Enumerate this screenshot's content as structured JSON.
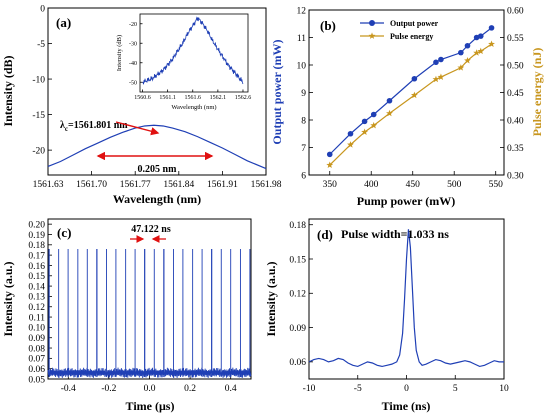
{
  "chart_data": [
    {
      "panel": "(a)",
      "type": "line",
      "xlabel": "Wavelength (nm)",
      "ylabel": "Intensity (dB)",
      "xlim": [
        1561.63,
        1561.98
      ],
      "ylim": [
        -23.5,
        0
      ],
      "xticks": [
        "1561.63",
        "1561.70",
        "1561.77",
        "1561.84",
        "1561.91",
        "1561.98"
      ],
      "yticks": [
        "0",
        "-5",
        "-10",
        "-15",
        "-20"
      ],
      "color": "#1f3fb5",
      "series": [
        {
          "x": [
            1561.63,
            1561.65,
            1561.67,
            1561.69,
            1561.71,
            1561.73,
            1561.75,
            1561.77,
            1561.785,
            1561.8,
            1561.815,
            1561.83,
            1561.85,
            1561.87,
            1561.89,
            1561.91,
            1561.93,
            1561.95,
            1561.98
          ],
          "y": [
            -22.3,
            -21.6,
            -20.7,
            -19.8,
            -19.0,
            -18.2,
            -17.5,
            -16.9,
            -16.6,
            -16.5,
            -16.6,
            -16.9,
            -17.4,
            -18.1,
            -18.9,
            -19.7,
            -20.6,
            -21.5,
            -22.6
          ]
        }
      ],
      "annotations": {
        "peak_label": "λ",
        "peak_sub": "c",
        "peak_value": "=1561.801 nm",
        "width_label": "0.205 nm"
      },
      "inset": {
        "type": "line",
        "xlabel": "Wavelength (nm)",
        "ylabel": "Intensity (dB)",
        "xlim": [
          1560.55,
          1562.7
        ],
        "ylim": [
          -55,
          -15
        ],
        "xticks": [
          "1560.6",
          "1561.1",
          "1561.6",
          "1562.1",
          "1562.6"
        ],
        "yticks": [
          "-20",
          "-30",
          "-40",
          "-50"
        ],
        "series": [
          {
            "x": [
              1560.6,
              1560.7,
              1560.8,
              1560.9,
              1561.0,
              1561.1,
              1561.2,
              1561.3,
              1561.4,
              1561.5,
              1561.6,
              1561.7,
              1561.8,
              1561.9,
              1562.0,
              1562.1,
              1562.2,
              1562.3,
              1562.4,
              1562.5,
              1562.6
            ],
            "y": [
              -50,
              -49,
              -48,
              -46,
              -44,
              -41,
              -38,
              -34,
              -30,
              -25,
              -21,
              -17,
              -20,
              -24,
              -29,
              -33,
              -37,
              -41,
              -44,
              -47,
              -50
            ]
          }
        ]
      }
    },
    {
      "panel": "(b)",
      "type": "line",
      "xlabel": "Pump power (mW)",
      "ylabel": "Output power (mW)",
      "ylabel_right": "Pulse energy (nJ)",
      "xlim": [
        325,
        560
      ],
      "ylim": [
        6,
        12
      ],
      "ylim_right": [
        0.3,
        0.6
      ],
      "xticks": [
        "350",
        "400",
        "450",
        "500",
        "550"
      ],
      "yticks": [
        "6",
        "7",
        "8",
        "9",
        "10",
        "11",
        "12"
      ],
      "yticks_right": [
        "0.30",
        "0.35",
        "0.40",
        "0.45",
        "0.50",
        "0.55",
        "0.60"
      ],
      "legend_position": "top-left",
      "series": [
        {
          "name": "Output power",
          "axis": "left",
          "marker": "circle",
          "color": "#1f3fb5",
          "x": [
            350,
            375,
            392,
            403,
            422,
            452,
            478,
            484,
            508,
            516,
            527,
            532,
            545
          ],
          "y": [
            6.75,
            7.5,
            7.95,
            8.2,
            8.7,
            9.5,
            10.1,
            10.2,
            10.45,
            10.7,
            11.0,
            11.05,
            11.35
          ]
        },
        {
          "name": "Pulse energy",
          "axis": "right",
          "marker": "star",
          "color": "#c8961e",
          "x": [
            350,
            375,
            392,
            403,
            422,
            452,
            478,
            484,
            508,
            516,
            527,
            532,
            545
          ],
          "y": [
            0.318,
            0.355,
            0.378,
            0.39,
            0.412,
            0.445,
            0.474,
            0.478,
            0.495,
            0.508,
            0.522,
            0.525,
            0.538
          ]
        }
      ]
    },
    {
      "panel": "(c)",
      "type": "line",
      "xlabel": "Time (μs)",
      "ylabel": "Intensity (a.u.)",
      "xlim": [
        -0.5,
        0.5
      ],
      "ylim": [
        0.05,
        0.205
      ],
      "xticks": [
        "-0.4",
        "-0.2",
        "0.0",
        "0.2",
        "0.4"
      ],
      "yticks": [
        "0.05",
        "0.06",
        "0.07",
        "0.08",
        "0.09",
        "0.10",
        "0.11",
        "0.12",
        "0.13",
        "0.14",
        "0.15",
        "0.16",
        "0.17",
        "0.18",
        "0.19",
        "0.20"
      ],
      "color": "#1f3fb5",
      "pulse_period_us": 0.047122,
      "pulse_peak": 0.176,
      "baseline": 0.056,
      "annotation": "47.122 ns"
    },
    {
      "panel": "(d)",
      "type": "line",
      "xlabel": "Time (ns)",
      "ylabel": "Intensity (a.u.)",
      "xlim": [
        -10,
        10
      ],
      "ylim": [
        0.045,
        0.185
      ],
      "xticks": [
        "-10",
        "-5",
        "0",
        "5",
        "10"
      ],
      "yticks": [
        "0.06",
        "0.09",
        "0.12",
        "0.15",
        "0.18"
      ],
      "color": "#1f3fb5",
      "annotation": "Pulse width=1.033 ns",
      "series": [
        {
          "x": [
            -10,
            -9.5,
            -9,
            -8.5,
            -8,
            -7.5,
            -7,
            -6.5,
            -6,
            -5.5,
            -5,
            -4.5,
            -4,
            -3.5,
            -3,
            -2.5,
            -2,
            -1.5,
            -1,
            -0.7,
            -0.4,
            -0.2,
            0,
            0.2,
            0.4,
            0.6,
            0.8,
            1.0,
            1.3,
            1.6,
            2,
            2.5,
            3,
            3.5,
            4,
            4.5,
            5,
            5.5,
            6,
            6.5,
            7,
            7.5,
            8,
            8.5,
            9,
            9.5,
            10
          ],
          "y": [
            0.06,
            0.062,
            0.063,
            0.062,
            0.06,
            0.061,
            0.063,
            0.062,
            0.059,
            0.057,
            0.056,
            0.058,
            0.06,
            0.059,
            0.057,
            0.056,
            0.057,
            0.058,
            0.06,
            0.066,
            0.085,
            0.115,
            0.15,
            0.176,
            0.16,
            0.125,
            0.09,
            0.07,
            0.06,
            0.057,
            0.058,
            0.06,
            0.062,
            0.061,
            0.059,
            0.058,
            0.059,
            0.06,
            0.061,
            0.06,
            0.058,
            0.056,
            0.057,
            0.059,
            0.061,
            0.06,
            0.06
          ]
        }
      ]
    }
  ]
}
